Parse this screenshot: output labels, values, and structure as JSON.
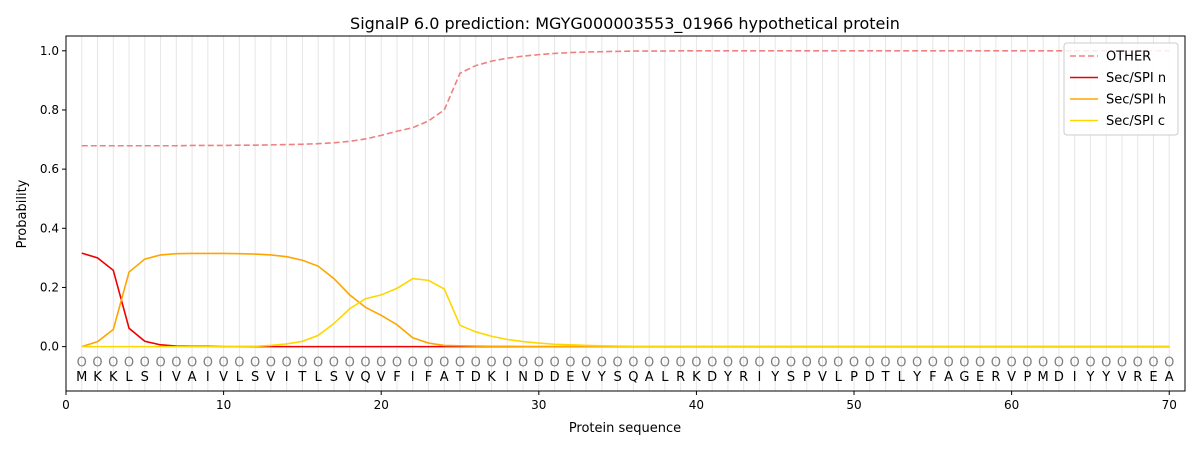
{
  "chart_data": {
    "type": "line",
    "title": "SignalP 6.0 prediction: MGYG000003553_01966 hypothetical protein",
    "xlabel": "Protein sequence",
    "ylabel": "Probability",
    "xlim": [
      0,
      71
    ],
    "ylim": [
      -0.15,
      1.05
    ],
    "xticks": [
      0,
      10,
      20,
      30,
      40,
      50,
      60,
      70
    ],
    "yticks": [
      0.0,
      0.2,
      0.4,
      0.6,
      0.8,
      1.0
    ],
    "ytick_labels": [
      "0.0",
      "0.2",
      "0.4",
      "0.6",
      "0.8",
      "1.0"
    ],
    "grid": "vertical lines at each residue",
    "legend_position": "top-right",
    "sequence": [
      "M",
      "K",
      "K",
      "L",
      "S",
      "I",
      "V",
      "A",
      "I",
      "V",
      "L",
      "S",
      "V",
      "I",
      "T",
      "L",
      "S",
      "V",
      "Q",
      "V",
      "F",
      "I",
      "F",
      "A",
      "T",
      "D",
      "K",
      "I",
      "N",
      "D",
      "D",
      "E",
      "V",
      "Y",
      "S",
      "Q",
      "A",
      "L",
      "R",
      "K",
      "D",
      "Y",
      "R",
      "I",
      "Y",
      "S",
      "P",
      "V",
      "L",
      "P",
      "D",
      "T",
      "L",
      "Y",
      "F",
      "A",
      "G",
      "E",
      "R",
      "V",
      "P",
      "M",
      "D",
      "I",
      "Y",
      "Y",
      "V",
      "R",
      "E",
      "A"
    ],
    "region_labels": [
      "O",
      "O",
      "O",
      "O",
      "O",
      "O",
      "O",
      "O",
      "O",
      "O",
      "O",
      "O",
      "O",
      "O",
      "O",
      "O",
      "O",
      "O",
      "O",
      "O",
      "O",
      "O",
      "O",
      "O",
      "O",
      "O",
      "O",
      "O",
      "O",
      "O",
      "O",
      "O",
      "O",
      "O",
      "O",
      "O",
      "O",
      "O",
      "O",
      "O",
      "O",
      "O",
      "O",
      "O",
      "O",
      "O",
      "O",
      "O",
      "O",
      "O",
      "O",
      "O",
      "O",
      "O",
      "O",
      "O",
      "O",
      "O",
      "O",
      "O",
      "O",
      "O",
      "O",
      "O",
      "O",
      "O",
      "O",
      "O",
      "O",
      "O"
    ],
    "x": [
      1,
      2,
      3,
      4,
      5,
      6,
      7,
      8,
      9,
      10,
      11,
      12,
      13,
      14,
      15,
      16,
      17,
      18,
      19,
      20,
      21,
      22,
      23,
      24,
      25,
      26,
      27,
      28,
      29,
      30,
      31,
      32,
      33,
      34,
      35,
      36,
      37,
      38,
      39,
      40,
      41,
      42,
      43,
      44,
      45,
      46,
      47,
      48,
      49,
      50,
      51,
      52,
      53,
      54,
      55,
      56,
      57,
      58,
      59,
      60,
      61,
      62,
      63,
      64,
      65,
      66,
      67,
      68,
      69,
      70
    ],
    "series": [
      {
        "name": "OTHER",
        "color": "#f08080",
        "dash": "dashed",
        "values": [
          0.679,
          0.679,
          0.679,
          0.679,
          0.679,
          0.679,
          0.679,
          0.68,
          0.68,
          0.68,
          0.681,
          0.681,
          0.682,
          0.683,
          0.684,
          0.686,
          0.689,
          0.694,
          0.702,
          0.714,
          0.728,
          0.74,
          0.763,
          0.8,
          0.924,
          0.95,
          0.965,
          0.975,
          0.982,
          0.987,
          0.991,
          0.994,
          0.996,
          0.997,
          0.998,
          0.999,
          0.999,
          0.999,
          1.0,
          1.0,
          1.0,
          1.0,
          1.0,
          1.0,
          1.0,
          1.0,
          1.0,
          1.0,
          1.0,
          1.0,
          1.0,
          1.0,
          1.0,
          1.0,
          1.0,
          1.0,
          1.0,
          1.0,
          1.0,
          1.0,
          1.0,
          1.0,
          1.0,
          1.0,
          1.0,
          1.0,
          1.0,
          1.0,
          1.0,
          1.0
        ]
      },
      {
        "name": "Sec/SPI n",
        "color": "#ee0000",
        "dash": "solid",
        "values": [
          0.316,
          0.3,
          0.258,
          0.062,
          0.018,
          0.006,
          0.002,
          0.001,
          0.001,
          0.0,
          0.0,
          0.0,
          0.0,
          0.0,
          0.0,
          0.0,
          0.0,
          0.0,
          0.0,
          0.0,
          0.0,
          0.0,
          0.0,
          0.0,
          0.0,
          0.0,
          0.0,
          0.0,
          0.0,
          0.0,
          0.0,
          0.0,
          0.0,
          0.0,
          0.0,
          0.0,
          0.0,
          0.0,
          0.0,
          0.0,
          0.0,
          0.0,
          0.0,
          0.0,
          0.0,
          0.0,
          0.0,
          0.0,
          0.0,
          0.0,
          0.0,
          0.0,
          0.0,
          0.0,
          0.0,
          0.0,
          0.0,
          0.0,
          0.0,
          0.0,
          0.0,
          0.0,
          0.0,
          0.0,
          0.0,
          0.0,
          0.0,
          0.0,
          0.0,
          0.0
        ]
      },
      {
        "name": "Sec/SPI h",
        "color": "#ffa500",
        "dash": "solid",
        "values": [
          0.0,
          0.017,
          0.058,
          0.252,
          0.296,
          0.31,
          0.314,
          0.315,
          0.315,
          0.315,
          0.314,
          0.313,
          0.31,
          0.304,
          0.292,
          0.272,
          0.23,
          0.175,
          0.133,
          0.106,
          0.074,
          0.03,
          0.012,
          0.004,
          0.003,
          0.002,
          0.001,
          0.001,
          0.0,
          0.0,
          0.0,
          0.0,
          0.0,
          0.0,
          0.0,
          0.0,
          0.0,
          0.0,
          0.0,
          0.0,
          0.0,
          0.0,
          0.0,
          0.0,
          0.0,
          0.0,
          0.0,
          0.0,
          0.0,
          0.0,
          0.0,
          0.0,
          0.0,
          0.0,
          0.0,
          0.0,
          0.0,
          0.0,
          0.0,
          0.0,
          0.0,
          0.0,
          0.0,
          0.0,
          0.0,
          0.0,
          0.0,
          0.0,
          0.0,
          0.0
        ]
      },
      {
        "name": "Sec/SPI c",
        "color": "#ffd700",
        "dash": "solid",
        "values": [
          0.0,
          0.0,
          0.0,
          0.0,
          0.0,
          0.0,
          0.0,
          0.0,
          0.0,
          0.0,
          0.0,
          0.001,
          0.004,
          0.009,
          0.018,
          0.038,
          0.078,
          0.128,
          0.162,
          0.175,
          0.197,
          0.23,
          0.224,
          0.195,
          0.072,
          0.05,
          0.035,
          0.024,
          0.017,
          0.012,
          0.008,
          0.006,
          0.004,
          0.003,
          0.002,
          0.001,
          0.001,
          0.001,
          0.001,
          0.001,
          0.001,
          0.001,
          0.001,
          0.001,
          0.001,
          0.001,
          0.001,
          0.001,
          0.001,
          0.001,
          0.001,
          0.001,
          0.001,
          0.001,
          0.001,
          0.001,
          0.001,
          0.001,
          0.001,
          0.001,
          0.001,
          0.001,
          0.001,
          0.001,
          0.001,
          0.001,
          0.001,
          0.001,
          0.001,
          0.001
        ]
      }
    ]
  }
}
